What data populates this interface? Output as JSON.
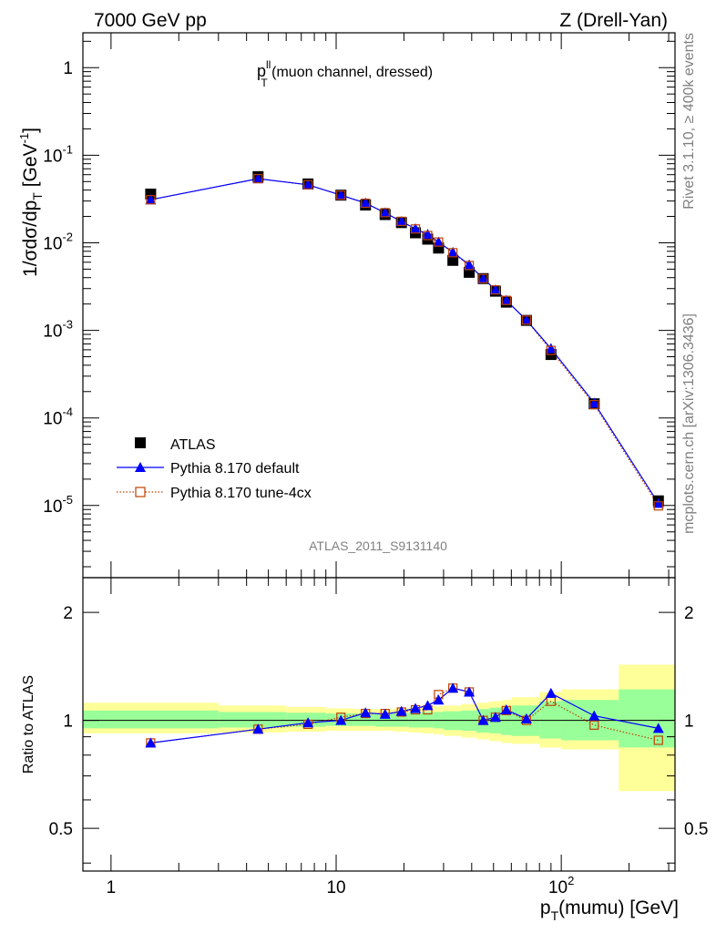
{
  "header": {
    "left_label": "7000 GeV pp",
    "right_label": "Z (Drell-Yan)"
  },
  "side": {
    "rivet": "Rivet 3.1.10, ≥ 400k events",
    "mcplots": "mcplots.cern.ch [arXiv:1306.3436]"
  },
  "colors": {
    "atlas": "#000000",
    "default": "#0000ff",
    "tune": "#c04000",
    "band_inner": "#99ff99",
    "band_outer": "#ffff99"
  },
  "chart_data": [
    {
      "type": "scatter",
      "title": "p_T^ll (muon channel, dressed)",
      "title_parts": {
        "p": "p",
        "sup": "ll",
        "sub": "T",
        "rest": " (muon channel, dressed)"
      },
      "ylabel": "1/σdσ/dp_T [GeV^-1]",
      "ylabel_parts": {
        "main": "1/σdσ/dp",
        "sub": "T",
        "unit_open": " [GeV",
        "unit_sup": "-1",
        "unit_close": "]"
      },
      "xscale": "log",
      "yscale": "log",
      "xlim": [
        0.75,
        320
      ],
      "ylim": [
        1.5e-06,
        2.5
      ],
      "watermark": "ATLAS_2011_S9131140",
      "legend_position": "lower-left",
      "y_tick_labels": [
        {
          "base": "10",
          "exp": "-5"
        },
        {
          "base": "10",
          "exp": "-4"
        },
        {
          "base": "10",
          "exp": "-3"
        },
        {
          "base": "10",
          "exp": "-2"
        },
        {
          "base": "10",
          "exp": "-1"
        },
        {
          "base": "1",
          "exp": ""
        }
      ],
      "legend": [
        "ATLAS",
        "Pythia 8.170 default",
        "Pythia 8.170 tune-4cx"
      ],
      "x": [
        1.5,
        4.5,
        7.5,
        10.5,
        13.5,
        16.5,
        19.5,
        22.5,
        25.5,
        28.5,
        33,
        39,
        45,
        51,
        57,
        70,
        90,
        140,
        270
      ],
      "series": [
        {
          "name": "ATLAS",
          "marker": "filled-square",
          "values": [
            0.036,
            0.057,
            0.047,
            0.035,
            0.027,
            0.021,
            0.017,
            0.013,
            0.011,
            0.0087,
            0.0063,
            0.0046,
            0.0039,
            0.0028,
            0.0021,
            0.0013,
            0.00053,
            0.000145,
            1.13e-05
          ]
        },
        {
          "name": "Pythia 8.170 default",
          "marker": "triangle",
          "values": [
            0.031,
            0.054,
            0.046,
            0.035,
            0.0285,
            0.022,
            0.0175,
            0.0145,
            0.0125,
            0.0102,
            0.0078,
            0.0056,
            0.0039,
            0.0029,
            0.0022,
            0.00131,
            0.00062,
            0.000148,
            1.06e-05
          ]
        },
        {
          "name": "Pythia 8.170 tune-4cx",
          "marker": "open-square",
          "values": [
            0.031,
            0.054,
            0.046,
            0.035,
            0.0283,
            0.0221,
            0.0176,
            0.0144,
            0.0121,
            0.0102,
            0.0077,
            0.0055,
            0.0039,
            0.0029,
            0.0022,
            0.00131,
            0.00059,
            0.000142,
            9.9e-06
          ]
        }
      ]
    },
    {
      "type": "scatter",
      "title": "",
      "xlabel": "p_T(mumu) [GeV]",
      "xlabel_parts": {
        "p": "p",
        "sub": "T",
        "rest": "(mumu) [GeV]"
      },
      "ylabel": "Ratio to ATLAS",
      "xscale": "log",
      "yscale": "log",
      "xlim": [
        0.75,
        320
      ],
      "ylim": [
        0.38,
        2.5
      ],
      "x_tick_labels": [
        "1",
        "10",
        "10^2"
      ],
      "x_tick_parts": [
        {
          "base": "1",
          "exp": ""
        },
        {
          "base": "10",
          "exp": ""
        },
        {
          "base": "10",
          "exp": "2"
        }
      ],
      "y_tick_labels": [
        "0.5",
        "1",
        "2"
      ],
      "x": [
        1.5,
        4.5,
        7.5,
        10.5,
        13.5,
        16.5,
        19.5,
        22.5,
        25.5,
        28.5,
        33,
        39,
        45,
        51,
        57,
        70,
        90,
        140,
        270
      ],
      "series": [
        {
          "name": "Pythia 8.170 default",
          "values": [
            0.865,
            0.945,
            0.985,
            1.0,
            1.05,
            1.04,
            1.06,
            1.08,
            1.1,
            1.14,
            1.23,
            1.2,
            1.0,
            1.02,
            1.07,
            1.01,
            1.19,
            1.03,
            0.95
          ]
        },
        {
          "name": "Pythia 8.170 tune-4cx",
          "values": [
            0.865,
            0.945,
            0.975,
            1.02,
            1.045,
            1.045,
            1.055,
            1.07,
            1.07,
            1.18,
            1.23,
            1.2,
            1.0,
            1.02,
            1.065,
            1.0,
            1.13,
            0.97,
            0.88
          ]
        }
      ],
      "uncertainty_bands": {
        "edges": [
          0.75,
          3,
          6,
          9,
          12,
          15,
          18,
          21,
          24,
          27,
          30,
          36,
          42,
          48,
          54,
          60,
          80,
          100,
          180,
          320
        ],
        "inner": [
          [
            0.95,
            1.065
          ],
          [
            0.955,
            1.055
          ],
          [
            0.96,
            1.05
          ],
          [
            0.965,
            1.045
          ],
          [
            0.965,
            1.045
          ],
          [
            0.96,
            1.045
          ],
          [
            0.96,
            1.05
          ],
          [
            0.955,
            1.05
          ],
          [
            0.955,
            1.055
          ],
          [
            0.95,
            1.055
          ],
          [
            0.94,
            1.06
          ],
          [
            0.935,
            1.065
          ],
          [
            0.925,
            1.075
          ],
          [
            0.92,
            1.085
          ],
          [
            0.91,
            1.09
          ],
          [
            0.905,
            1.1
          ],
          [
            0.89,
            1.13
          ],
          [
            0.88,
            1.14
          ],
          [
            0.84,
            1.22
          ]
        ],
        "outer": [
          [
            0.92,
            1.12
          ],
          [
            0.925,
            1.1
          ],
          [
            0.93,
            1.09
          ],
          [
            0.935,
            1.08
          ],
          [
            0.935,
            1.075
          ],
          [
            0.935,
            1.075
          ],
          [
            0.93,
            1.08
          ],
          [
            0.925,
            1.085
          ],
          [
            0.92,
            1.09
          ],
          [
            0.915,
            1.095
          ],
          [
            0.905,
            1.1
          ],
          [
            0.895,
            1.11
          ],
          [
            0.885,
            1.12
          ],
          [
            0.875,
            1.13
          ],
          [
            0.865,
            1.14
          ],
          [
            0.86,
            1.16
          ],
          [
            0.84,
            1.2
          ],
          [
            0.83,
            1.22
          ],
          [
            0.635,
            1.43
          ]
        ]
      }
    }
  ]
}
